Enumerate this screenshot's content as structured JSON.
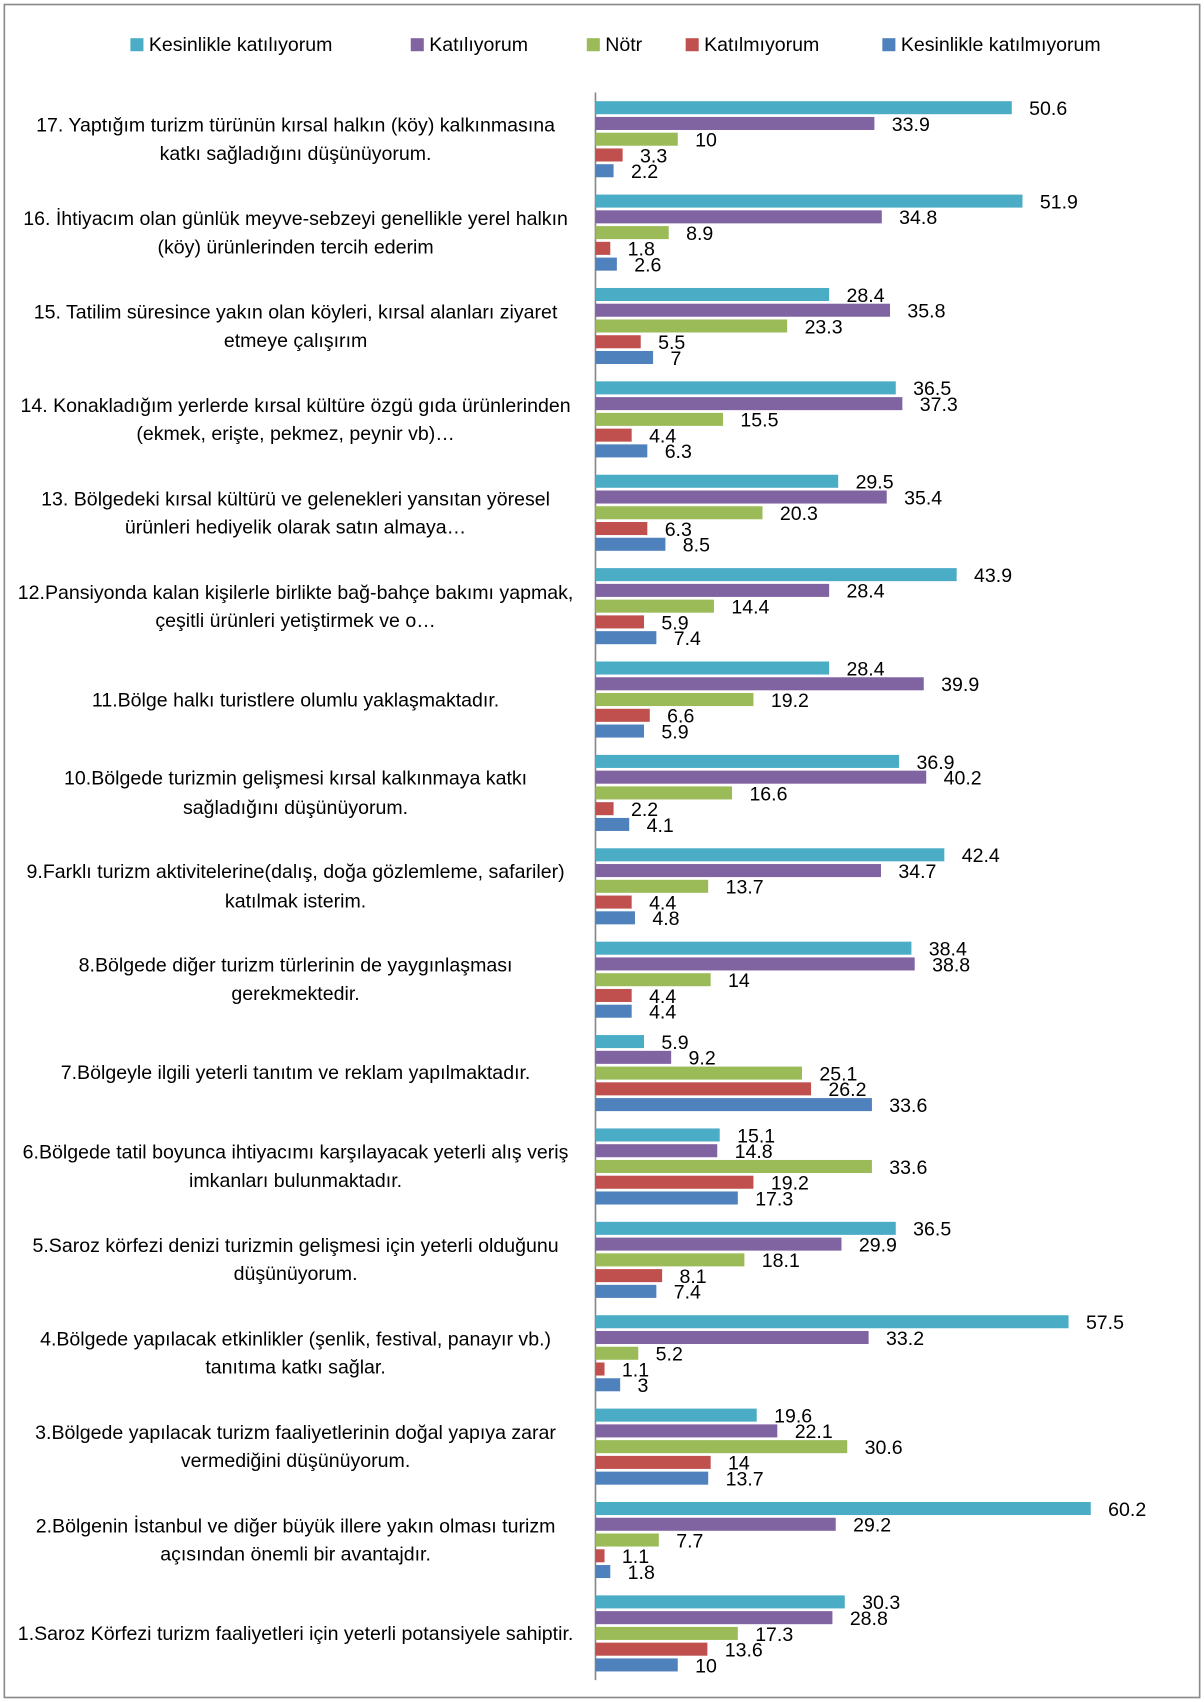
{
  "chart_data": {
    "type": "bar",
    "orientation": "horizontal",
    "categories": [
      "1.Saroz Körfezi turizm faaliyetleri için yeterli potansiyele sahiptir.",
      "2.Bölgenin İstanbul ve diğer büyük illere yakın olması turizm açısından önemli bir avantajdır.",
      "3.Bölgede yapılacak turizm faaliyetlerinin doğal yapıya zarar vermediğini düşünüyorum.",
      "4.Bölgede yapılacak etkinlikler (şenlik, festival, panayır vb.) tanıtıma katkı sağlar.",
      "5.Saroz körfezi denizi turizmin gelişmesi için yeterli olduğunu düşünüyorum.",
      "6.Bölgede tatil boyunca ihtiyacımı karşılayacak yeterli alış veriş imkanları bulunmaktadır.",
      "7.Bölgeyle ilgili yeterli tanıtım ve reklam yapılmaktadır.",
      "8.Bölgede diğer turizm türlerinin de yaygınlaşması gerekmektedir.",
      "9.Farklı turizm aktivitelerine(dalış, doğa gözlemleme, safariler) katılmak isterim.",
      "10.Bölgede turizmin gelişmesi kırsal kalkınmaya katkı sağladığını düşünüyorum.",
      "11.Bölge halkı turistlere olumlu yaklaşmaktadır.",
      "12.Pansiyonda kalan kişilerle birlikte bağ-bahçe bakımı yapmak, çeşitli ürünleri yetiştirmek ve o…",
      "13. Bölgedeki kırsal kültürü ve gelenekleri yansıtan yöresel ürünleri hediyelik olarak satın almaya…",
      "14. Konakladığım yerlerde kırsal kültüre özgü gıda ürünlerinden  (ekmek, erişte, pekmez, peynir vb)…",
      "15. Tatilim süresince yakın olan köyleri, kırsal alanları ziyaret etmeye çalışırım",
      "16. İhtiyacım olan günlük meyve-sebzeyi genellikle yerel halkın (köy) ürünlerinden tercih ederim",
      "17. Yaptığım turizm türünün kırsal halkın (köy) kalkınmasına katkı sağladığını düşünüyorum."
    ],
    "series": [
      {
        "name": "Kesinlikle katılıyorum",
        "color": "#4bacc6",
        "values": [
          30.3,
          60.2,
          19.6,
          57.5,
          36.5,
          15.1,
          5.9,
          38.4,
          42.4,
          36.9,
          28.4,
          43.9,
          29.5,
          36.5,
          28.4,
          51.9,
          50.6
        ]
      },
      {
        "name": "Katılıyorum",
        "color": "#8064a2",
        "values": [
          28.8,
          29.2,
          22.1,
          33.2,
          29.9,
          14.8,
          9.2,
          38.8,
          34.7,
          40.2,
          39.9,
          28.4,
          35.4,
          37.3,
          35.8,
          34.8,
          33.9
        ]
      },
      {
        "name": "Nötr",
        "color": "#9bbb59",
        "values": [
          17.3,
          7.7,
          30.6,
          5.2,
          18.1,
          33.6,
          25.1,
          14,
          13.7,
          16.6,
          19.2,
          14.4,
          20.3,
          15.5,
          23.3,
          8.9,
          10
        ]
      },
      {
        "name": "Katılmıyorum",
        "color": "#c0504d",
        "values": [
          13.6,
          1.1,
          14,
          1.1,
          8.1,
          19.2,
          26.2,
          4.4,
          4.4,
          2.2,
          6.6,
          5.9,
          6.3,
          4.4,
          5.5,
          1.8,
          3.3
        ]
      },
      {
        "name": "Kesinlikle katılmıyorum",
        "color": "#4f81bd",
        "values": [
          10,
          1.8,
          13.7,
          3,
          7.4,
          17.3,
          33.6,
          4.4,
          4.8,
          4.1,
          5.9,
          7.4,
          8.5,
          6.3,
          7,
          2.6,
          2.2
        ]
      }
    ],
    "xlim": [
      0,
      70
    ],
    "legend": "top"
  }
}
